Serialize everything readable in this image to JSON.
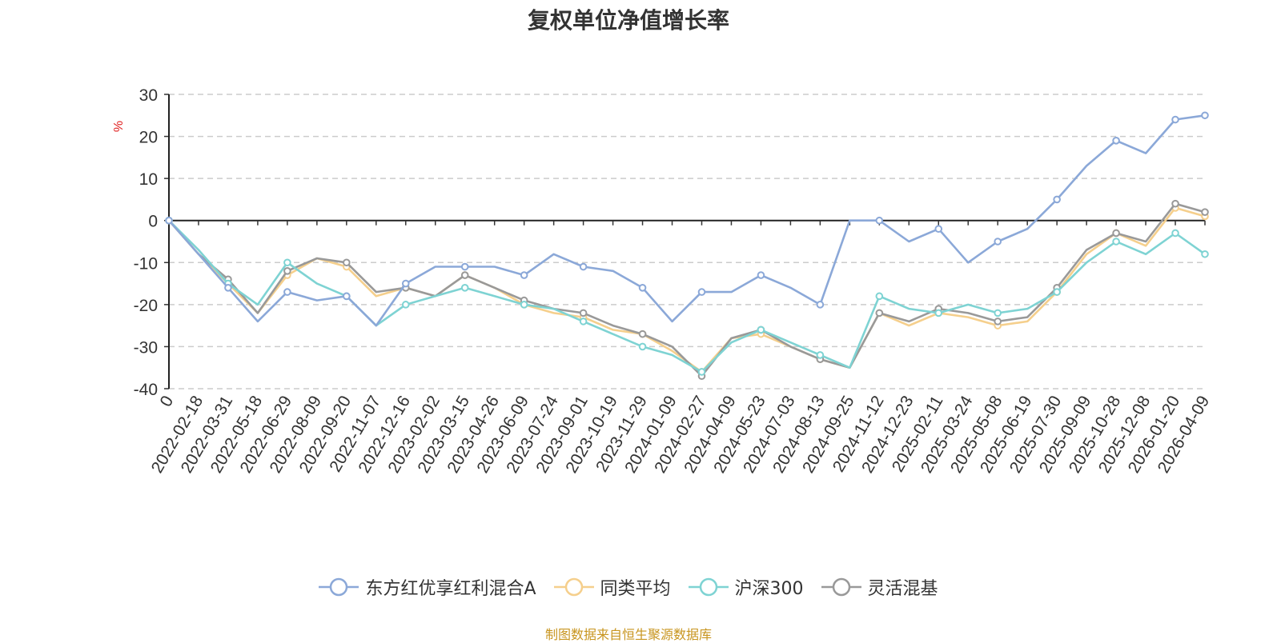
{
  "title": "复权单位净值增长率",
  "source_note": "制图数据来自恒生聚源数据库",
  "chart_data": {
    "type": "line",
    "title": "复权单位净值增长率",
    "xlabel": "",
    "ylabel": "%",
    "ylim": [
      -40,
      30
    ],
    "yticks": [
      30,
      20,
      10,
      0,
      -10,
      -20,
      -30,
      -40
    ],
    "grid": true,
    "legend_position": "bottom",
    "x_tick_labels": [
      "0",
      "2022-02-18",
      "2022-03-31",
      "2022-05-18",
      "2022-06-29",
      "2022-08-09",
      "2022-09-20",
      "2022-11-07",
      "2022-12-16",
      "2023-02-02",
      "2023-03-15",
      "2023-04-26",
      "2023-06-09",
      "2023-07-24",
      "2023-09-01",
      "2023-10-19",
      "2023-11-29",
      "2024-01-09",
      "2024-02-27",
      "2024-04-09",
      "2024-05-23",
      "2024-07-03",
      "2024-08-13",
      "2024-09-25",
      "2024-11-12",
      "2024-12-23",
      "2025-02-11",
      "2025-03-24",
      "2025-05-08",
      "2025-06-19",
      "2025-07-30",
      "2025-09-09",
      "2025-10-28",
      "2025-12-08",
      "2026-01-20",
      "2026-04-09"
    ],
    "series": [
      {
        "name": "东方红优享红利混合A",
        "color": "#8ba8d8",
        "values": [
          0,
          -8,
          -16,
          -24,
          -17,
          -19,
          -18,
          -25,
          -15,
          -11,
          -11,
          -11,
          -13,
          -8,
          -11,
          -12,
          -16,
          -24,
          -17,
          -17,
          -13,
          -16,
          -20,
          0,
          0,
          -5,
          -2,
          -10,
          -5,
          -2,
          5,
          13,
          19,
          16,
          24,
          25
        ]
      },
      {
        "name": "同类平均",
        "color": "#f5cf8c",
        "values": [
          0,
          -8,
          -15,
          -22,
          -13,
          -9,
          -11,
          -18,
          -16,
          -18,
          -13,
          -16,
          -20,
          -22,
          -23,
          -26,
          -27,
          -31,
          -36,
          -28,
          -27,
          -30,
          -33,
          -35,
          -22,
          -25,
          -22,
          -23,
          -25,
          -24,
          -17,
          -8,
          -3,
          -6,
          3,
          1
        ]
      },
      {
        "name": "沪深300",
        "color": "#7ed3d3",
        "values": [
          0,
          -7,
          -15,
          -20,
          -10,
          -15,
          -18,
          -25,
          -20,
          -18,
          -16,
          -18,
          -20,
          -21,
          -24,
          -27,
          -30,
          -32,
          -36,
          -29,
          -26,
          -29,
          -32,
          -35,
          -18,
          -21,
          -22,
          -20,
          -22,
          -21,
          -17,
          -10,
          -5,
          -8,
          -3,
          -8
        ]
      },
      {
        "name": "灵活混基",
        "color": "#999999",
        "values": [
          0,
          -8,
          -14,
          -22,
          -12,
          -9,
          -10,
          -17,
          -16,
          -18,
          -13,
          -16,
          -19,
          -21,
          -22,
          -25,
          -27,
          -30,
          -37,
          -28,
          -26,
          -30,
          -33,
          -35,
          -22,
          -24,
          -21,
          -22,
          -24,
          -23,
          -16,
          -7,
          -3,
          -5,
          4,
          2
        ]
      }
    ]
  }
}
